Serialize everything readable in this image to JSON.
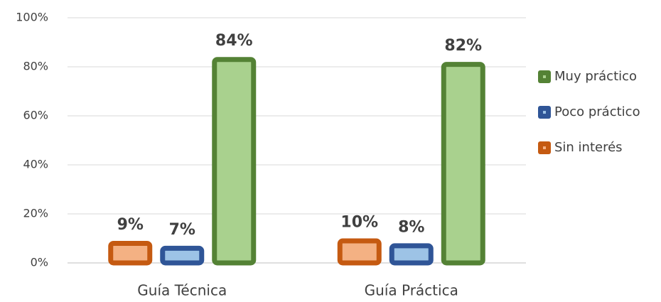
{
  "chart_data": {
    "type": "bar",
    "categories": [
      "Guía Técnica",
      "Guía Práctica"
    ],
    "series": [
      {
        "name": "Sin interés",
        "color": "#c55a11",
        "fill_color": "#f4b183",
        "values": [
          9,
          10
        ],
        "value_labels": [
          "9%",
          "10%"
        ]
      },
      {
        "name": "Poco práctico",
        "color": "#2f5597",
        "fill_color": "#9dc3e6",
        "values": [
          7,
          8
        ],
        "value_labels": [
          "7%",
          "8%"
        ]
      },
      {
        "name": "Muy práctico",
        "color": "#548235",
        "fill_color": "#a9d18e",
        "values": [
          84,
          82
        ],
        "value_labels": [
          "84%",
          "82%"
        ]
      }
    ],
    "ylim": [
      0,
      100
    ],
    "yticks": [
      {
        "value": 0,
        "label": "0%"
      },
      {
        "value": 20,
        "label": "20%"
      },
      {
        "value": 40,
        "label": "40%"
      },
      {
        "value": 60,
        "label": "60%"
      },
      {
        "value": 80,
        "label": "80%"
      },
      {
        "value": 100,
        "label": "100%"
      }
    ],
    "grid": true,
    "legend": "right",
    "value_label_color": "#6a9a3a"
  }
}
